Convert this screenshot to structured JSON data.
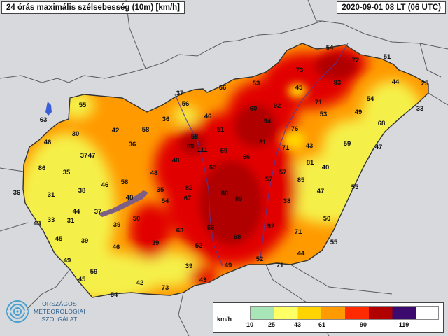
{
  "header": {
    "title": "24 órás maximális szélsebesség (10m) [km/h]",
    "timestamp": "2020-09-01 08 LT (06 UTC)"
  },
  "logo": {
    "line1": "ORSZÁGOS",
    "line2": "METEOROLÓGIAI",
    "line3": "SZOLGÁLAT"
  },
  "legend": {
    "unit": "km/h",
    "ticks": [
      "10",
      "25",
      "43",
      "61",
      "90",
      "119"
    ],
    "colors": [
      "#a8e6b8",
      "#ffff66",
      "#ffd400",
      "#ff9a00",
      "#ff2a00",
      "#b00000",
      "#3c0a6e",
      "#ffffff"
    ]
  },
  "colors": {
    "background": "#d7d9dc",
    "yellow": "#f5f04a",
    "orange": "#ff9a00",
    "red": "#e10000",
    "deep_red": "#b00000",
    "border": "#444444"
  },
  "station_values": [
    "54",
    "72",
    "51",
    "73",
    "44",
    "25",
    "66",
    "53",
    "45",
    "83",
    "71",
    "37",
    "56",
    "60",
    "92",
    "54",
    "33",
    "46",
    "94",
    "53",
    "49",
    "63",
    "55",
    "42",
    "58",
    "36",
    "51",
    "76",
    "68",
    "30",
    "58",
    "69",
    "111",
    "69",
    "81",
    "71",
    "43",
    "59",
    "46",
    "36",
    "47",
    "48",
    "65",
    "66",
    "81",
    "47",
    "37",
    "48",
    "57",
    "57",
    "86",
    "35",
    "35",
    "82",
    "80",
    "89",
    "85",
    "40",
    "47",
    "36",
    "31",
    "38",
    "46",
    "58",
    "48",
    "54",
    "67",
    "55",
    "38",
    "44",
    "37",
    "48",
    "33",
    "31",
    "39",
    "50",
    "66",
    "92",
    "63",
    "50",
    "45",
    "39",
    "39",
    "68",
    "71",
    "52",
    "55",
    "46",
    "44",
    "49",
    "39",
    "49",
    "52",
    "71",
    "59",
    "45",
    "42",
    "43",
    "73",
    "54",
    "37"
  ]
}
